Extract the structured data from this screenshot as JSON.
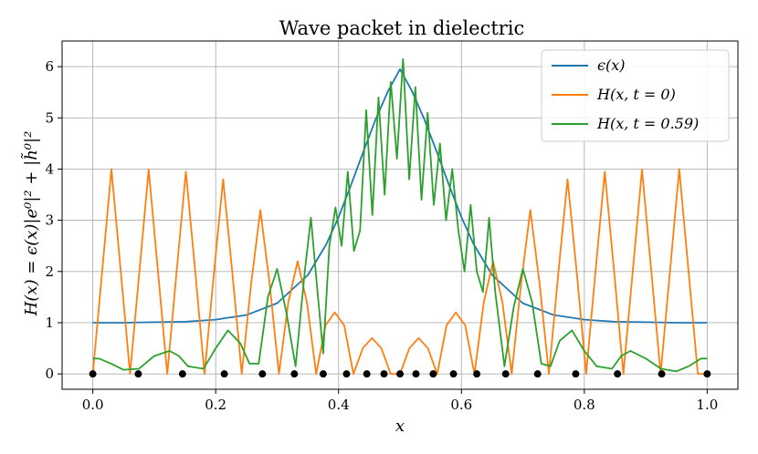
{
  "chart_data": {
    "type": "line",
    "title": "Wave packet in dielectric",
    "xlabel": "x",
    "ylabel": "H(x) = ϵ(x)|e⁰|² + |h̃⁰|²",
    "xlim": [
      -0.05,
      1.05
    ],
    "ylim": [
      -0.3,
      6.5
    ],
    "xticks": [
      0.0,
      0.2,
      0.4,
      0.6,
      0.8,
      1.0
    ],
    "xtick_labels": [
      "0.0",
      "0.2",
      "0.4",
      "0.6",
      "0.8",
      "1.0"
    ],
    "yticks": [
      0,
      1,
      2,
      3,
      4,
      5,
      6
    ],
    "ytick_labels": [
      "0",
      "1",
      "2",
      "3",
      "4",
      "5",
      "6"
    ],
    "grid": true,
    "legend_position": "top-right",
    "series": [
      {
        "name": "ϵ(x)",
        "color": "#1f77b4",
        "x": [
          0.0,
          0.05,
          0.1,
          0.15,
          0.2,
          0.25,
          0.3,
          0.35,
          0.38,
          0.4,
          0.42,
          0.44,
          0.46,
          0.48,
          0.5,
          0.52,
          0.54,
          0.56,
          0.58,
          0.6,
          0.62,
          0.65,
          0.7,
          0.75,
          0.8,
          0.85,
          0.9,
          0.95,
          1.0
        ],
        "y": [
          1.0,
          1.0,
          1.01,
          1.02,
          1.06,
          1.15,
          1.38,
          1.93,
          2.53,
          3.06,
          3.68,
          4.33,
          4.96,
          5.51,
          5.95,
          5.51,
          4.96,
          4.33,
          3.68,
          3.06,
          2.53,
          1.93,
          1.38,
          1.15,
          1.06,
          1.02,
          1.01,
          1.0,
          1.0
        ]
      },
      {
        "name": "H(x, t = 0)",
        "color": "#ff7f0e",
        "x": [
          0.0,
          0.0152,
          0.0303,
          0.0455,
          0.0606,
          0.0758,
          0.0909,
          0.1061,
          0.1212,
          0.1364,
          0.1515,
          0.1667,
          0.1818,
          0.197,
          0.2121,
          0.2273,
          0.2424,
          0.2576,
          0.2727,
          0.2879,
          0.303,
          0.3182,
          0.3333,
          0.3485,
          0.3636,
          0.3788,
          0.3939,
          0.4091,
          0.4242,
          0.4394,
          0.4545,
          0.4697,
          0.4848,
          0.5,
          0.5152,
          0.5303,
          0.5455,
          0.5606,
          0.5758,
          0.5909,
          0.6061,
          0.6212,
          0.6364,
          0.6515,
          0.6667,
          0.6818,
          0.697,
          0.7121,
          0.7273,
          0.7424,
          0.7576,
          0.7727,
          0.7879,
          0.803,
          0.8182,
          0.8333,
          0.8485,
          0.8636,
          0.8788,
          0.8939,
          0.9091,
          0.9242,
          0.9394,
          0.9545,
          0.9697,
          0.9848,
          1.0
        ],
        "y": [
          0.0,
          2.0,
          4.0,
          2.0,
          0.0,
          2.0,
          3.99,
          2.0,
          0.0,
          2.0,
          3.95,
          2.0,
          0.0,
          1.95,
          3.8,
          1.95,
          0.0,
          1.75,
          3.2,
          1.75,
          0.0,
          1.4,
          2.2,
          1.4,
          0.0,
          0.95,
          1.2,
          0.95,
          0.0,
          0.5,
          0.7,
          0.5,
          0.0,
          0.0,
          0.5,
          0.7,
          0.5,
          0.0,
          0.95,
          1.2,
          0.95,
          0.0,
          1.4,
          2.2,
          1.4,
          0.0,
          1.75,
          3.2,
          1.75,
          0.0,
          1.95,
          3.8,
          1.95,
          0.0,
          2.0,
          3.95,
          2.0,
          0.0,
          2.0,
          3.99,
          2.0,
          0.0,
          2.0,
          4.0,
          2.0,
          0.0,
          0.0
        ]
      },
      {
        "name": "H(x, t = 0.59)",
        "color": "#2ca02c",
        "x": [
          0.0,
          0.01,
          0.03,
          0.05,
          0.075,
          0.1,
          0.125,
          0.14,
          0.155,
          0.18,
          0.2,
          0.22,
          0.24,
          0.255,
          0.27,
          0.285,
          0.3,
          0.315,
          0.33,
          0.345,
          0.355,
          0.365,
          0.375,
          0.385,
          0.395,
          0.405,
          0.415,
          0.425,
          0.435,
          0.445,
          0.455,
          0.465,
          0.475,
          0.485,
          0.495,
          0.505,
          0.515,
          0.525,
          0.535,
          0.545,
          0.555,
          0.565,
          0.575,
          0.585,
          0.595,
          0.605,
          0.615,
          0.625,
          0.635,
          0.645,
          0.655,
          0.67,
          0.685,
          0.7,
          0.715,
          0.73,
          0.745,
          0.76,
          0.78,
          0.8,
          0.82,
          0.845,
          0.86,
          0.875,
          0.9,
          0.925,
          0.95,
          0.97,
          0.99,
          1.0
        ],
        "y": [
          0.3,
          0.3,
          0.2,
          0.08,
          0.1,
          0.35,
          0.45,
          0.35,
          0.15,
          0.1,
          0.5,
          0.85,
          0.6,
          0.2,
          0.2,
          1.5,
          2.05,
          1.2,
          0.15,
          2.0,
          3.05,
          1.7,
          0.4,
          2.5,
          3.25,
          2.5,
          3.95,
          2.4,
          2.8,
          5.15,
          3.1,
          5.4,
          3.5,
          5.7,
          4.2,
          6.15,
          3.8,
          5.6,
          3.4,
          5.1,
          3.3,
          4.5,
          3.0,
          4.0,
          2.8,
          2.0,
          3.3,
          2.0,
          1.6,
          3.05,
          1.6,
          0.15,
          1.3,
          2.05,
          1.4,
          0.2,
          0.15,
          0.65,
          0.85,
          0.45,
          0.15,
          0.1,
          0.35,
          0.45,
          0.3,
          0.1,
          0.05,
          0.15,
          0.3,
          0.3
        ]
      }
    ],
    "markers": {
      "color": "#000000",
      "x": [
        0.0,
        0.074,
        0.146,
        0.214,
        0.276,
        0.328,
        0.375,
        0.413,
        0.446,
        0.474,
        0.5,
        0.526,
        0.554,
        0.587,
        0.625,
        0.672,
        0.724,
        0.786,
        0.854,
        0.926,
        1.0
      ],
      "y": [
        0,
        0,
        0,
        0,
        0,
        0,
        0,
        0,
        0,
        0,
        0,
        0,
        0,
        0,
        0,
        0,
        0,
        0,
        0,
        0,
        0
      ]
    }
  }
}
